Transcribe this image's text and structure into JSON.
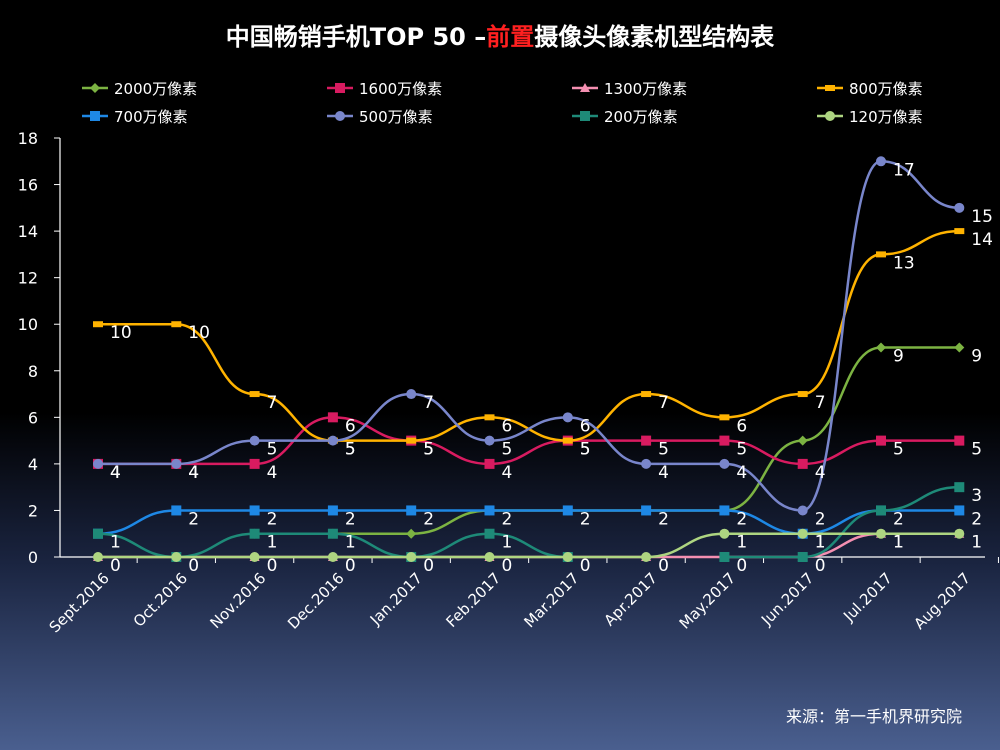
{
  "chart_data": {
    "type": "line",
    "title": "中国畅销手机TOP 50 –前置摄像头像素机型结构表",
    "title_parts": {
      "prefix": "中国畅销手机TOP 50 –",
      "accent": "前置",
      "suffix": "摄像头像素机型结构表"
    },
    "categories": [
      "Sept.2016",
      "Oct.2016",
      "Nov.2016",
      "Dec.2016",
      "Jan.2017",
      "Feb.2017",
      "Mar.2017",
      "Apr.2017",
      "May.2017",
      "Jun.2017",
      "Jul.2017",
      "Aug.2017"
    ],
    "ylim": [
      0,
      18
    ],
    "yticks": [
      0,
      2,
      4,
      6,
      8,
      10,
      12,
      14,
      16,
      18
    ],
    "xlabel": "",
    "ylabel": "",
    "grid": false,
    "legend_position": "top",
    "series": [
      {
        "name": "2000万像素",
        "color": "#7cb342",
        "marker": "diamond",
        "values": [
          null,
          null,
          1,
          1,
          1,
          2,
          2,
          2,
          2,
          5,
          9,
          9
        ],
        "labels": [
          null,
          null,
          null,
          null,
          null,
          null,
          null,
          null,
          null,
          null,
          "9",
          "9"
        ]
      },
      {
        "name": "1600万像素",
        "color": "#d81b60",
        "marker": "square",
        "values": [
          4,
          4,
          4,
          6,
          5,
          4,
          5,
          5,
          5,
          4,
          5,
          5
        ],
        "labels": [
          "4",
          "4",
          "4",
          "6",
          "5",
          "4",
          "5",
          "5",
          "5",
          "4",
          "5",
          "5"
        ]
      },
      {
        "name": "1300万像素",
        "color": "#f48fb1",
        "marker": "triangle",
        "values": [
          0,
          0,
          0,
          0,
          0,
          0,
          0,
          0,
          0,
          0,
          1,
          1
        ],
        "labels": [
          null,
          null,
          null,
          null,
          null,
          null,
          null,
          null,
          null,
          null,
          null,
          null
        ]
      },
      {
        "name": "800万像素",
        "color": "#ffb300",
        "marker": "dash",
        "values": [
          10,
          10,
          7,
          5,
          5,
          6,
          5,
          7,
          6,
          7,
          13,
          14
        ],
        "labels": [
          "10",
          "10",
          "7",
          "5",
          "5",
          "6",
          "5",
          "7",
          "6",
          "7",
          "13",
          "14"
        ]
      },
      {
        "name": "700万像素",
        "color": "#1e88e5",
        "marker": "square",
        "values": [
          1,
          2,
          2,
          2,
          2,
          2,
          2,
          2,
          2,
          1,
          2,
          2
        ],
        "labels": [
          null,
          "2",
          "2",
          "2",
          "2",
          "2",
          "2",
          "2",
          "2",
          "1",
          "2",
          "2"
        ]
      },
      {
        "name": "500万像素",
        "color": "#7986cb",
        "marker": "circle",
        "values": [
          4,
          4,
          5,
          5,
          7,
          5,
          6,
          4,
          4,
          2,
          17,
          15
        ],
        "labels": [
          "4",
          "4",
          "5",
          "5",
          "7",
          "5",
          "6",
          "4",
          "4",
          "2",
          "17",
          "15"
        ]
      },
      {
        "name": "200万像素",
        "color": "#1e8a78",
        "marker": "square",
        "values": [
          1,
          0,
          1,
          1,
          0,
          1,
          0,
          null,
          0,
          0,
          2,
          3
        ],
        "labels": [
          "1",
          null,
          "1",
          "1",
          null,
          "1",
          null,
          null,
          null,
          null,
          null,
          "3"
        ]
      },
      {
        "name": "120万像素",
        "color": "#aed581",
        "marker": "circle",
        "values": [
          0,
          0,
          0,
          0,
          0,
          0,
          0,
          0,
          1,
          1,
          1,
          1
        ],
        "labels": [
          "0",
          "0",
          "0",
          "0",
          "0",
          "0",
          "0",
          "0",
          "1",
          "1",
          "1",
          "1"
        ]
      }
    ],
    "extra_labels": [
      {
        "series": "200万像素",
        "index": 8,
        "text": "0"
      },
      {
        "series": "200万像素",
        "index": 9,
        "text": "0"
      },
      {
        "series": "1300万像素",
        "index": 10,
        "text": "1"
      }
    ]
  },
  "source": "来源：第一手机界研究院"
}
